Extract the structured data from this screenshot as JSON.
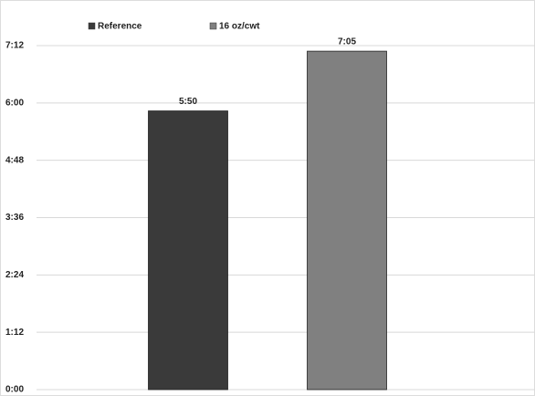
{
  "chart_data": {
    "type": "bar",
    "categories": [
      null
    ],
    "series": [
      {
        "name": "Reference",
        "color": "#3a3a3a",
        "values": [
          350
        ],
        "value_labels": [
          "5:50"
        ]
      },
      {
        "name": "16 oz/cwt",
        "color": "#808080",
        "values": [
          425
        ],
        "value_labels": [
          "7:05"
        ]
      }
    ],
    "ylim": [
      0,
      432
    ],
    "yticks": [
      {
        "value": 0,
        "label": "0:00"
      },
      {
        "value": 72,
        "label": "1:12"
      },
      {
        "value": 144,
        "label": "2:24"
      },
      {
        "value": 216,
        "label": "3:36"
      },
      {
        "value": 288,
        "label": "4:48"
      },
      {
        "value": 360,
        "label": "6:00"
      },
      {
        "value": 432,
        "label": "7:12"
      }
    ],
    "grid": true,
    "legend": "top"
  }
}
